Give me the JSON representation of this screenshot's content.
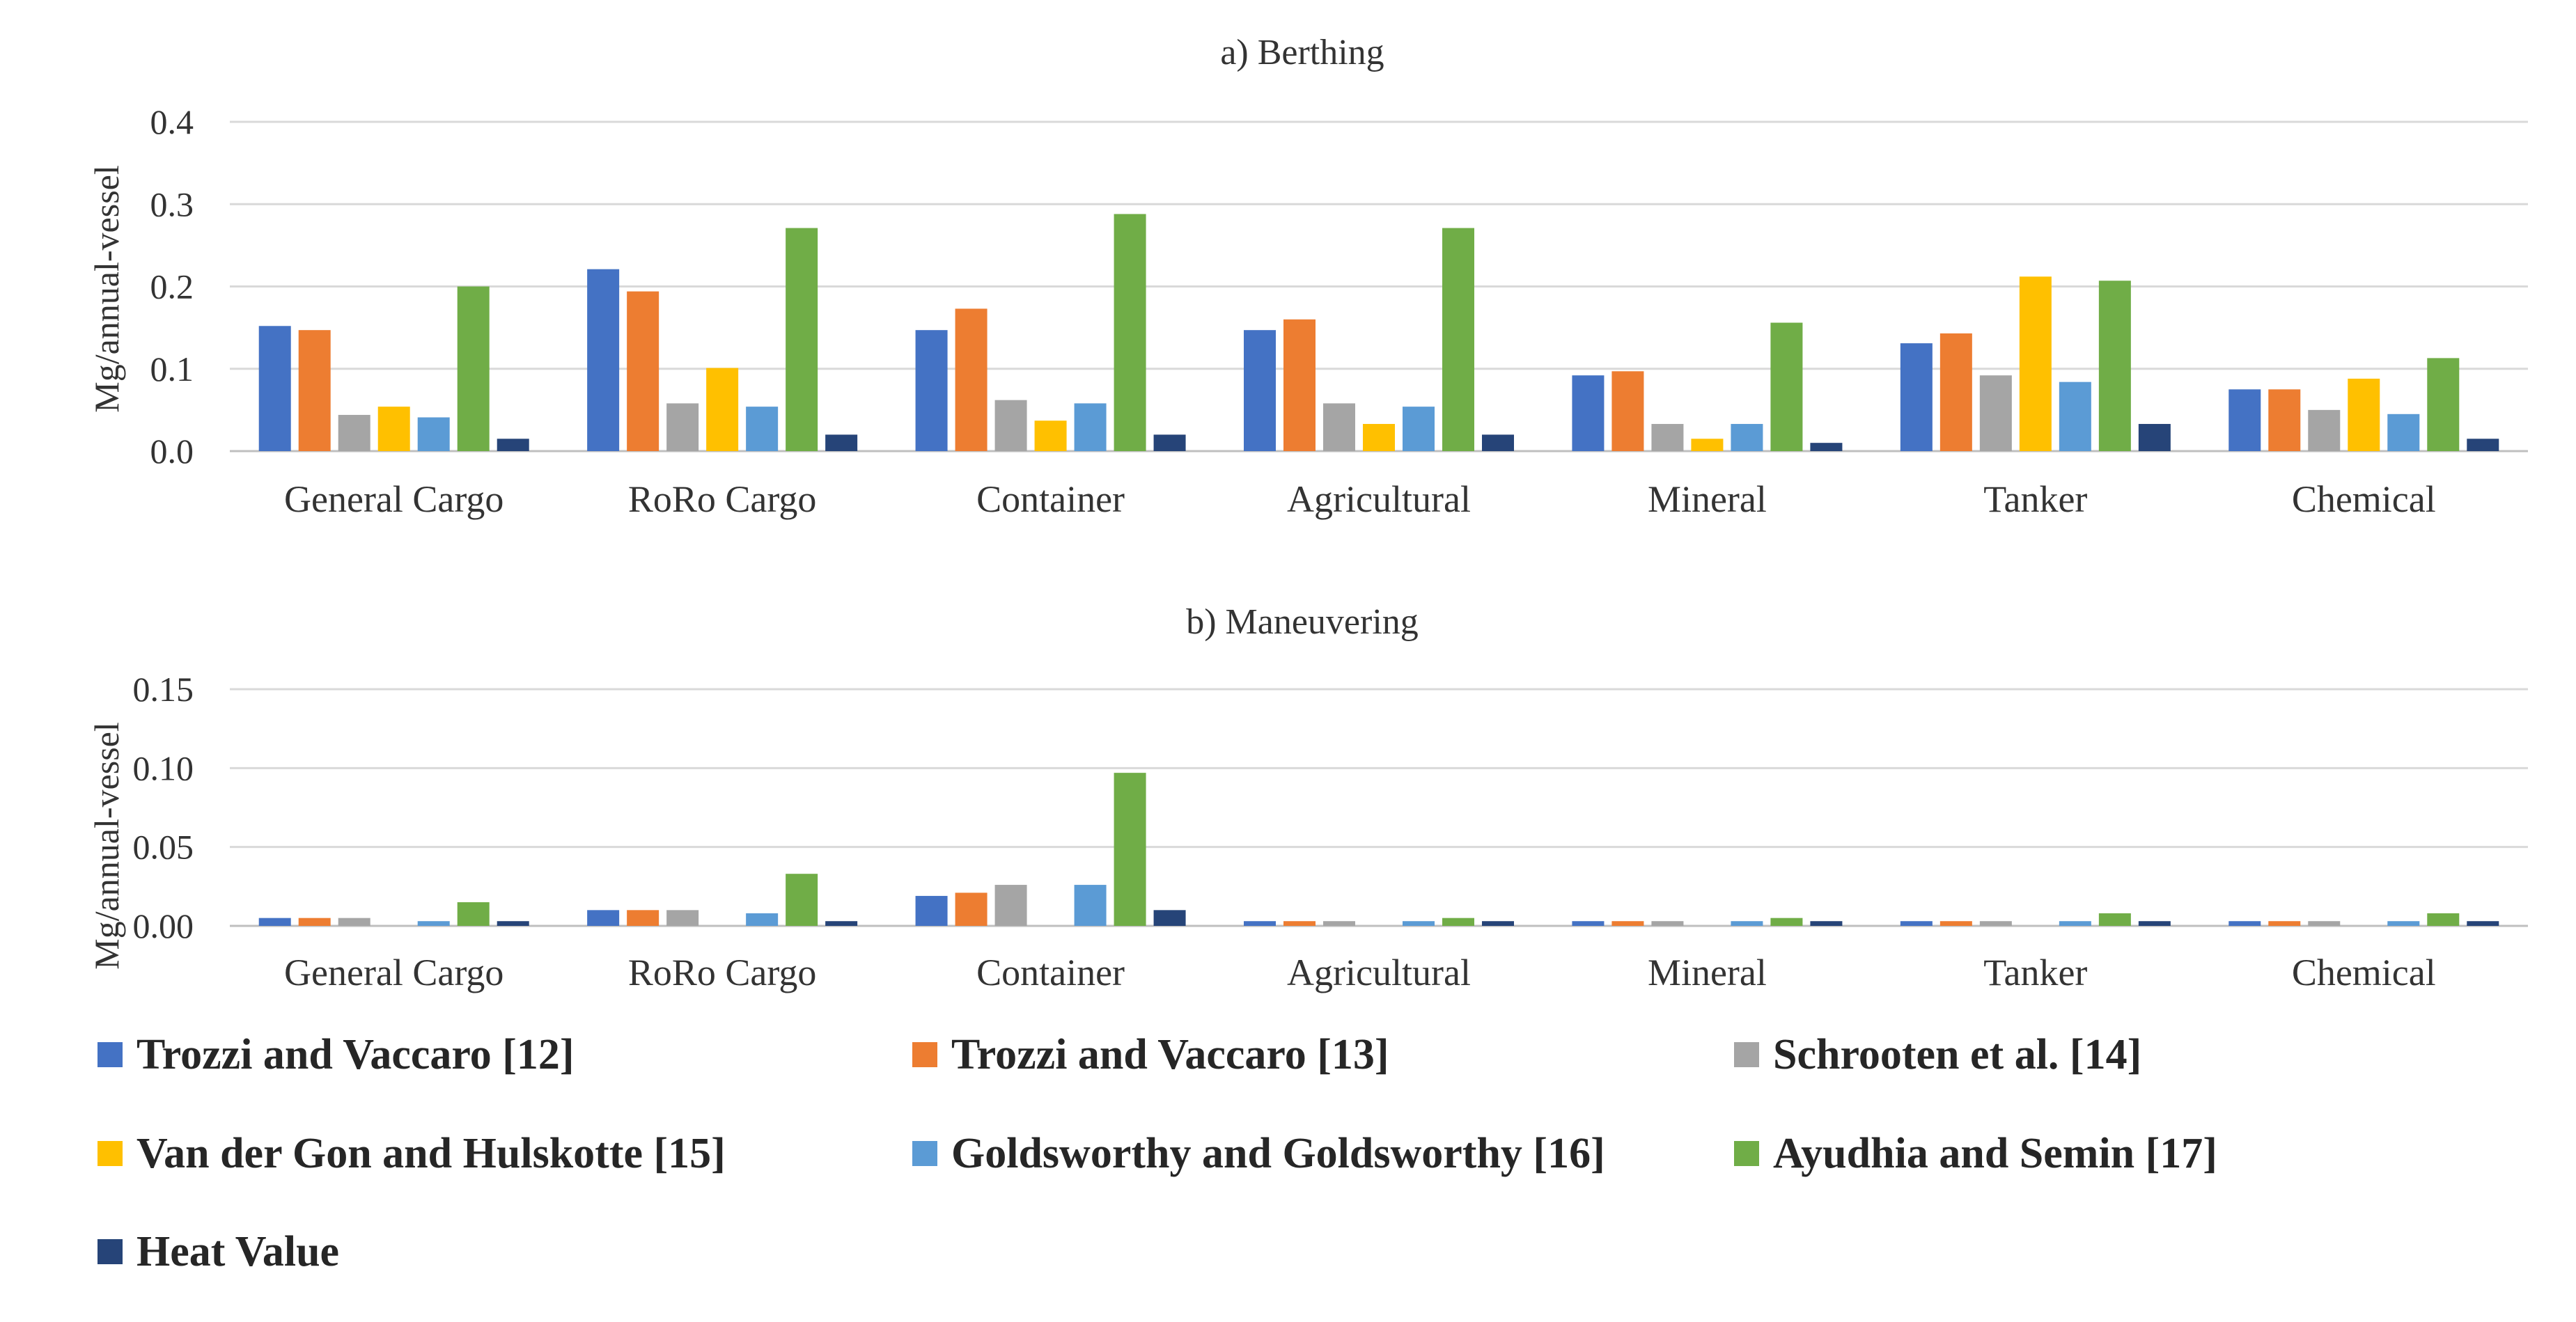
{
  "chart_data": [
    {
      "type": "bar",
      "title": "a) Berthing",
      "xlabel": "",
      "ylabel": "Mg/annual-vessel",
      "ylim": [
        0,
        0.4
      ],
      "yticks": [
        "0.0",
        "0.1",
        "0.2",
        "0.3",
        "0.4"
      ],
      "categories": [
        "General Cargo",
        "RoRo Cargo",
        "Container",
        "Agricultural",
        "Mineral",
        "Tanker",
        "Chemical"
      ],
      "series": [
        {
          "name": "Trozzi and Vaccaro [12]",
          "values": [
            0.152,
            0.221,
            0.147,
            0.147,
            0.092,
            0.131,
            0.075
          ]
        },
        {
          "name": "Trozzi and Vaccaro [13]",
          "values": [
            0.147,
            0.194,
            0.173,
            0.16,
            0.097,
            0.143,
            0.075
          ]
        },
        {
          "name": "Schrooten et al. [14]",
          "values": [
            0.044,
            0.058,
            0.062,
            0.058,
            0.033,
            0.092,
            0.05
          ]
        },
        {
          "name": "Van der Gon and Hulskotte [15]",
          "values": [
            0.054,
            0.101,
            0.037,
            0.033,
            0.015,
            0.212,
            0.088
          ]
        },
        {
          "name": "Goldsworthy and Goldsworthy [16]",
          "values": [
            0.041,
            0.054,
            0.058,
            0.054,
            0.033,
            0.084,
            0.045
          ]
        },
        {
          "name": "Ayudhia and Semin [17]",
          "values": [
            0.2,
            0.271,
            0.288,
            0.271,
            0.156,
            0.207,
            0.113
          ]
        },
        {
          "name": "Heat Value",
          "values": [
            0.015,
            0.02,
            0.02,
            0.02,
            0.01,
            0.033,
            0.015
          ]
        }
      ]
    },
    {
      "type": "bar",
      "title": "b) Maneuvering",
      "xlabel": "",
      "ylabel": "Mg/annual-vessel",
      "ylim": [
        0,
        0.15
      ],
      "yticks": [
        "0.00",
        "0.05",
        "0.10",
        "0.15"
      ],
      "categories": [
        "General Cargo",
        "RoRo Cargo",
        "Container",
        "Agricultural",
        "Mineral",
        "Tanker",
        "Chemical"
      ],
      "series": [
        {
          "name": "Trozzi and Vaccaro [12]",
          "values": [
            0.005,
            0.01,
            0.019,
            0.003,
            0.003,
            0.003,
            0.003
          ]
        },
        {
          "name": "Trozzi and Vaccaro [13]",
          "values": [
            0.005,
            0.01,
            0.021,
            0.003,
            0.003,
            0.003,
            0.003
          ]
        },
        {
          "name": "Schrooten et al. [14]",
          "values": [
            0.005,
            0.01,
            0.026,
            0.003,
            0.003,
            0.003,
            0.003
          ]
        },
        {
          "name": "Van der Gon and Hulskotte [15]",
          "values": [
            0.0,
            0.0,
            0.0,
            0.0,
            0.0,
            0.0,
            0.0
          ]
        },
        {
          "name": "Goldsworthy and Goldsworthy [16]",
          "values": [
            0.003,
            0.008,
            0.026,
            0.003,
            0.003,
            0.003,
            0.003
          ]
        },
        {
          "name": "Ayudhia and Semin [17]",
          "values": [
            0.015,
            0.033,
            0.097,
            0.005,
            0.005,
            0.008,
            0.008
          ]
        },
        {
          "name": "Heat Value",
          "values": [
            0.003,
            0.003,
            0.01,
            0.003,
            0.003,
            0.003,
            0.003
          ]
        }
      ]
    }
  ],
  "legend": [
    {
      "label": "Trozzi and Vaccaro [12]",
      "color": "#4472c4"
    },
    {
      "label": "Trozzi and Vaccaro [13]",
      "color": "#ed7d31"
    },
    {
      "label": "Schrooten et al. [14]",
      "color": "#a5a5a5"
    },
    {
      "label": "Van der Gon and Hulskotte [15]",
      "color": "#ffc000"
    },
    {
      "label": "Goldsworthy and Goldsworthy [16]",
      "color": "#5b9bd5"
    },
    {
      "label": "Ayudhia and Semin [17]",
      "color": "#70ad47"
    },
    {
      "label": "Heat Value",
      "color": "#264478"
    }
  ]
}
